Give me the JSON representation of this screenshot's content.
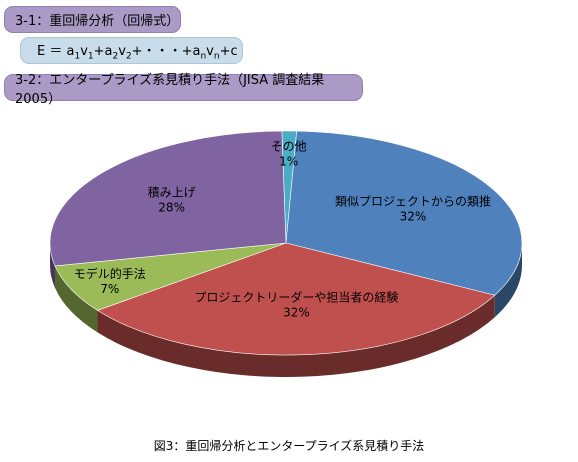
{
  "header": {
    "method_title": "3-1：重回帰分析（回帰式）",
    "formula": {
      "lhs": "E ＝ ",
      "terms": [
        {
          "coef": "a",
          "coef_sub": "1",
          "var": "v",
          "var_sub": "1"
        },
        {
          "coef": "a",
          "coef_sub": "2",
          "var": "v",
          "var_sub": "2"
        }
      ],
      "ellipsis": "+・・・+",
      "last_term": {
        "coef": "a",
        "coef_sub": "n",
        "var": "v",
        "var_sub": "n"
      },
      "constant": "+c"
    },
    "survey_title": "3-2：エンタープライズ系見積り手法（JISA 調査結果 2005）"
  },
  "chart_data": {
    "type": "pie",
    "style": "3d",
    "title": "",
    "slices": [
      {
        "label": "その他",
        "value": 1,
        "value_label": "1%",
        "color": "#4bacc6"
      },
      {
        "label": "類似プロジェクトからの類推",
        "value": 32,
        "value_label": "32%",
        "color": "#4f81bd"
      },
      {
        "label": "プロジェクトリーダーや担当者の経験",
        "value": 32,
        "value_label": "32%",
        "color": "#c0504d"
      },
      {
        "label": "モデル的手法",
        "value": 7,
        "value_label": "7%",
        "color": "#9bbb59"
      },
      {
        "label": "積み上げ",
        "value": 28,
        "value_label": "28%",
        "color": "#8064a2"
      }
    ]
  },
  "caption": "図3：重回帰分析とエンタープライズ系見積り手法"
}
